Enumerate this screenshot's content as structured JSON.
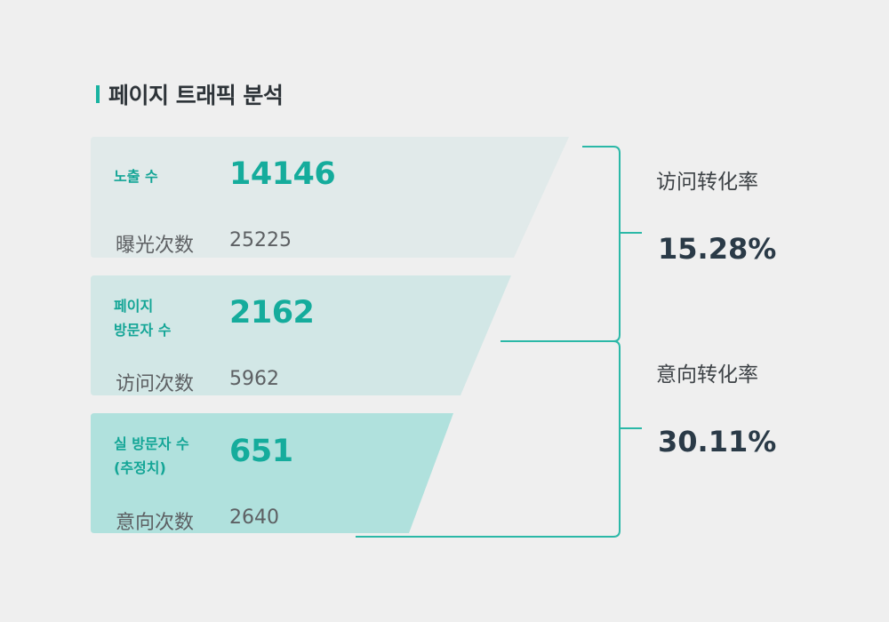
{
  "page": {
    "title": "페이지 트래픽 분석"
  },
  "funnel": [
    {
      "label_lines": [
        "노출 수"
      ],
      "value": "14146",
      "sub_label": "曝光次数",
      "sub_value": "25225",
      "fill": "#e1eaea"
    },
    {
      "label_lines": [
        "페이지",
        "방문자 수"
      ],
      "value": "2162",
      "sub_label": "访问次数",
      "sub_value": "5962",
      "fill": "#d2e7e6"
    },
    {
      "label_lines": [
        "실 방문자 수",
        "(추정치)"
      ],
      "value": "651",
      "sub_label": "意向次数",
      "sub_value": "2640",
      "fill": "#b0e1dd"
    }
  ],
  "rates": [
    {
      "label": "访问转化率",
      "value": "15.28%"
    },
    {
      "label": "意向转化率",
      "value": "30.11%"
    }
  ],
  "colors": {
    "accent": "#19b3a1",
    "background": "#efefef",
    "connector": "#2bb8a7"
  }
}
